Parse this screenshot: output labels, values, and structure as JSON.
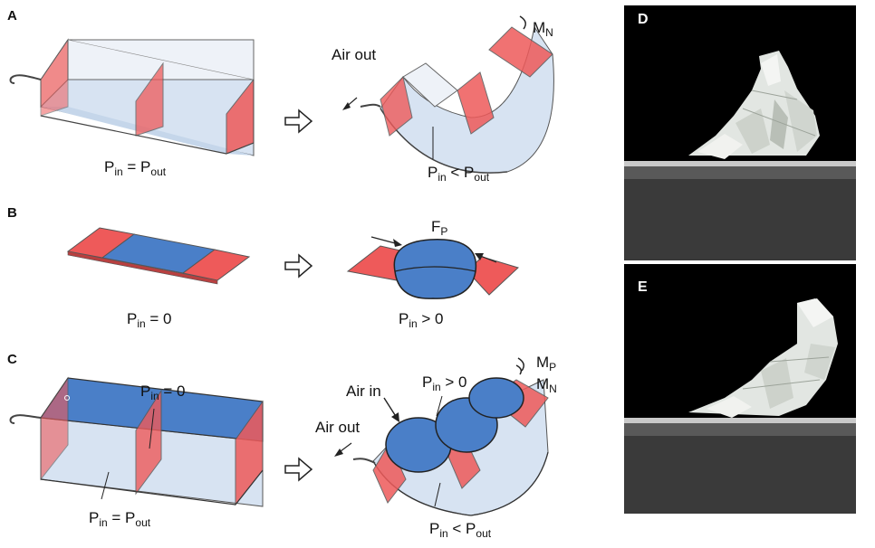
{
  "panels": {
    "a": {
      "letter": "A",
      "left_eq": {
        "p": "P",
        "sub_in": "in",
        "rel": " = P",
        "sub_out": "out"
      },
      "air_out": "Air out",
      "moment": {
        "m": "M",
        "sub": "N"
      },
      "right_eq": {
        "p": "P",
        "sub_in": "in",
        "rel": " < P",
        "sub_out": "out"
      }
    },
    "b": {
      "letter": "B",
      "left_eq": {
        "p": "P",
        "sub_in": "in",
        "rel": " = 0"
      },
      "force": {
        "f": "F",
        "sub": "P"
      },
      "right_eq": {
        "p": "P",
        "sub_in": "in",
        "rel": " > 0"
      }
    },
    "c": {
      "letter": "C",
      "top_eq": {
        "p": "P",
        "sub_in": "in",
        "rel": " = 0"
      },
      "bottom_eq": {
        "p": "P",
        "sub_in": "in",
        "rel": " = P",
        "sub_out": "out"
      },
      "air_in": "Air in",
      "air_out": "Air out",
      "bubble_eq": {
        "p": "P",
        "sub_in": "in",
        "rel": " > 0"
      },
      "moment_p": {
        "m": "M",
        "sub": "P"
      },
      "moment_n": {
        "m": "M",
        "sub": "N"
      },
      "right_eq": {
        "p": "P",
        "sub_in": "in",
        "rel": " < P",
        "sub_out": "out"
      }
    },
    "d": {
      "letter": "D"
    },
    "e": {
      "letter": "E"
    }
  },
  "colors": {
    "red": "#ee5a5a",
    "blue": "#4a7fc8",
    "light_blue": "#d7e3f2",
    "photo_bg": "#000000"
  }
}
